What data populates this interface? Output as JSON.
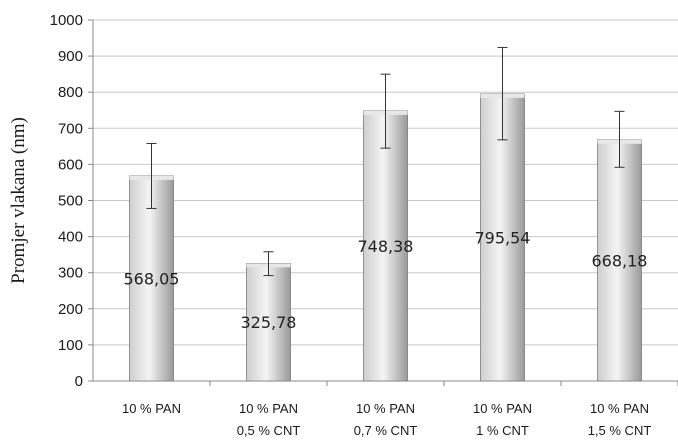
{
  "chart_data": {
    "type": "bar",
    "categories": [
      [
        "10 % PAN"
      ],
      [
        "10 % PAN",
        "0,5 % CNT"
      ],
      [
        "10 % PAN",
        "0,7 % CNT"
      ],
      [
        "10 % PAN",
        "1 % CNT"
      ],
      [
        "10 % PAN",
        "1,5 % CNT"
      ]
    ],
    "values": [
      568.05,
      325.78,
      748.38,
      795.54,
      668.18
    ],
    "value_labels": [
      "568,05",
      "325,78",
      "748,38",
      "795,54",
      "668,18"
    ],
    "error_low": [
      478,
      292,
      645,
      668,
      592
    ],
    "error_high": [
      658,
      358,
      850,
      924,
      747
    ],
    "ylabel": "Promjer vlakana (nm)",
    "xlabel": "",
    "title": "",
    "ylim": [
      0,
      1000
    ],
    "yticks": [
      0,
      100,
      200,
      300,
      400,
      500,
      600,
      700,
      800,
      900,
      1000
    ],
    "grid": true,
    "legend": "none",
    "colors": {
      "bar_light": "#f4f4f4",
      "bar_mid": "#cfcfcf",
      "bar_dark": "#9a9a9a",
      "grid": "#c8c8c8",
      "axis": "#888888",
      "error_bar": "#333333"
    }
  }
}
